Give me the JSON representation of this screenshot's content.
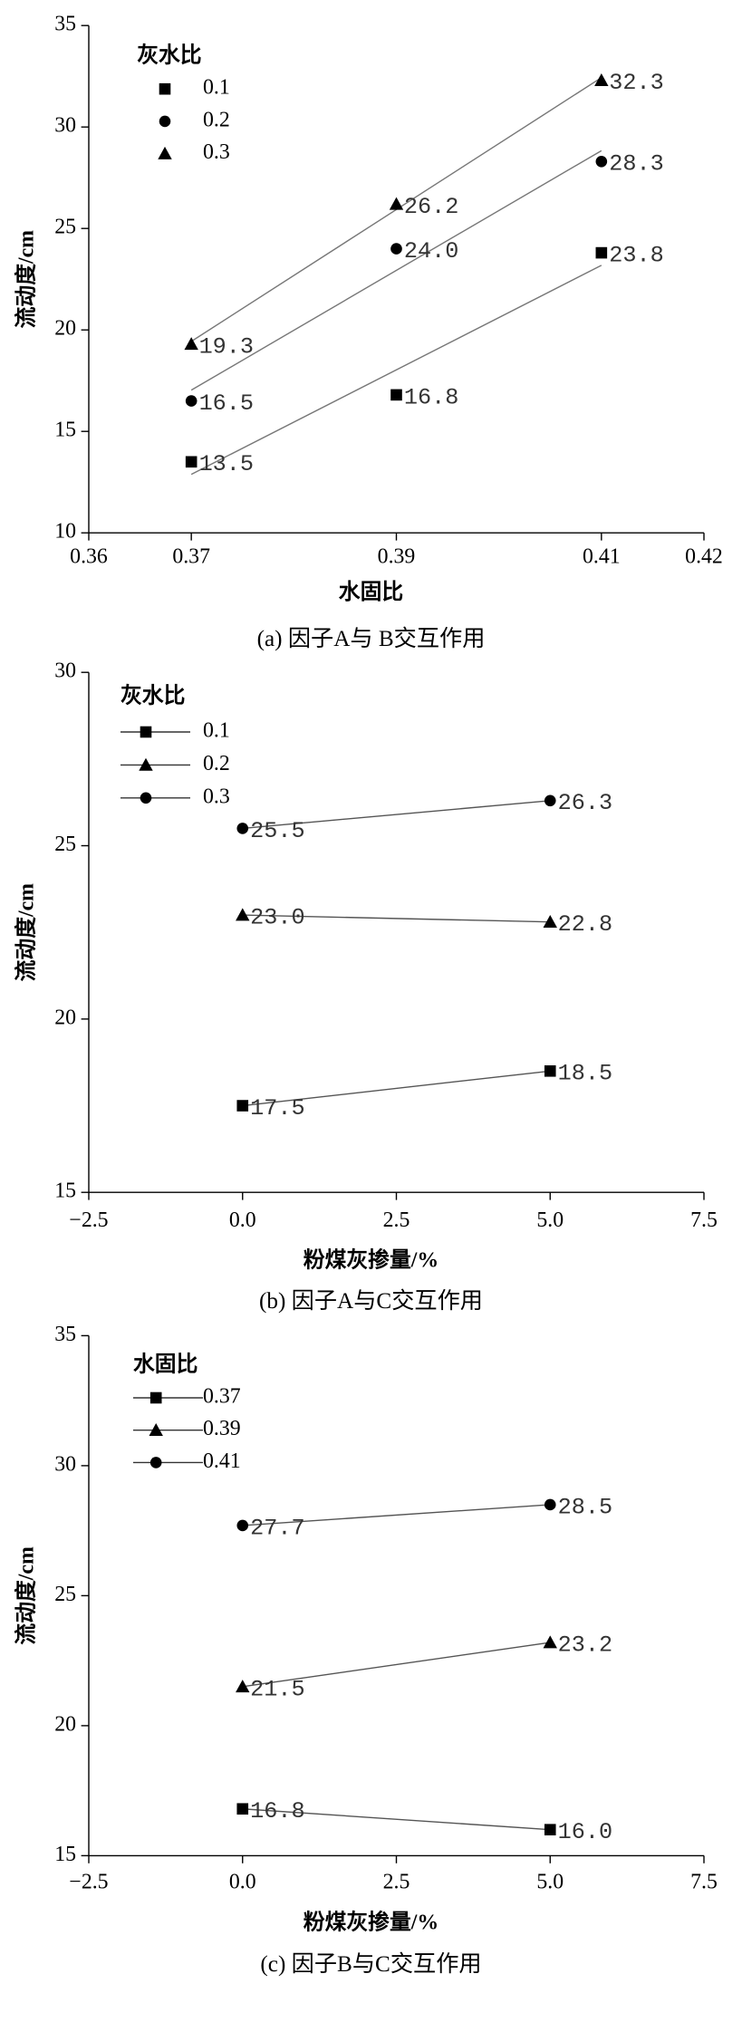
{
  "chart_data": [
    {
      "type": "scatter",
      "fit": "linear",
      "caption": "(a) 因子A与 B交互作用",
      "xlabel": "水固比",
      "ylabel": "流动度/cm",
      "legend_title": "灰水比",
      "x": [
        0.37,
        0.39,
        0.41
      ],
      "xlim": [
        0.36,
        0.42
      ],
      "xticks": [
        0.36,
        0.37,
        0.39,
        0.41,
        0.42
      ],
      "ylim": [
        10,
        35
      ],
      "yticks": [
        10,
        15,
        20,
        25,
        30,
        35
      ],
      "series": [
        {
          "name": "0.1",
          "marker": "square",
          "color": "#000000",
          "values": [
            13.5,
            16.8,
            23.8
          ]
        },
        {
          "name": "0.2",
          "marker": "circle",
          "color": "#000000",
          "values": [
            16.5,
            24.0,
            28.3
          ],
          "value_labels": [
            "16.5",
            "24.0",
            "28.3"
          ]
        },
        {
          "name": "0.3",
          "marker": "triangle",
          "color": "#000000",
          "values": [
            19.3,
            26.2,
            32.3
          ]
        }
      ]
    },
    {
      "type": "line",
      "caption": "(b) 因子A与C交互作用",
      "xlabel": "粉煤灰掺量/%",
      "ylabel": "流动度/cm",
      "legend_title": "灰水比",
      "x": [
        0,
        5
      ],
      "xlim": [
        -2.5,
        7.5
      ],
      "xticks": [
        {
          "value": -2.5,
          "label": "−2.5"
        },
        {
          "value": 0,
          "label": "0.0"
        },
        2.5,
        {
          "value": 5,
          "label": "5.0"
        },
        7.5
      ],
      "ylim": [
        15,
        30
      ],
      "yticks": [
        15,
        20,
        25,
        30
      ],
      "series": [
        {
          "name": "0.1",
          "marker": "square",
          "color": "#000000",
          "values": [
            17.5,
            18.5
          ]
        },
        {
          "name": "0.2",
          "marker": "triangle",
          "color": "#000000",
          "values": [
            23.0,
            22.8
          ],
          "value_labels": [
            "23.0",
            "22.8"
          ]
        },
        {
          "name": "0.3",
          "marker": "circle",
          "color": "#000000",
          "values": [
            25.5,
            26.3
          ]
        }
      ]
    },
    {
      "type": "line",
      "caption": "(c) 因子B与C交互作用",
      "xlabel": "粉煤灰掺量/%",
      "ylabel": "流动度/cm",
      "legend_title": "水固比",
      "x": [
        0,
        5
      ],
      "xlim": [
        -2.5,
        7.5
      ],
      "xticks": [
        {
          "value": -2.5,
          "label": "−2.5"
        },
        {
          "value": 0,
          "label": "0.0"
        },
        2.5,
        {
          "value": 5,
          "label": "5.0"
        },
        7.5
      ],
      "ylim": [
        15,
        35
      ],
      "yticks": [
        15,
        20,
        25,
        30,
        35
      ],
      "series": [
        {
          "name": "0.37",
          "marker": "square",
          "color": "#000000",
          "values": [
            16.8,
            16.0
          ],
          "value_labels": [
            "16.8",
            "16.0"
          ]
        },
        {
          "name": "0.39",
          "marker": "triangle",
          "color": "#000000",
          "values": [
            21.5,
            23.2
          ]
        },
        {
          "name": "0.41",
          "marker": "circle",
          "color": "#000000",
          "values": [
            27.7,
            28.5
          ]
        }
      ]
    }
  ]
}
